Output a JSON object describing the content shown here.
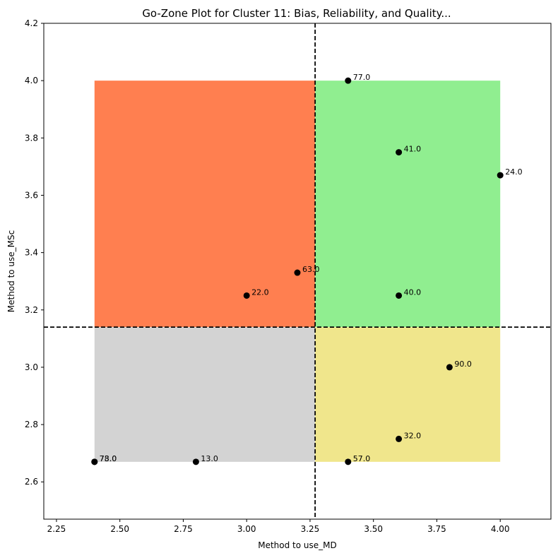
{
  "chart_data": {
    "type": "scatter",
    "title": "Go-Zone Plot for Cluster 11: Bias, Reliability, and Quality...",
    "xlabel": "Method to use_MD",
    "ylabel": "Method to use_MSc",
    "xlim": [
      2.2,
      4.2
    ],
    "ylim": [
      2.47,
      4.2
    ],
    "xticks": [
      "2.25",
      "2.50",
      "2.75",
      "3.00",
      "3.25",
      "3.50",
      "3.75",
      "4.00"
    ],
    "xtick_values": [
      2.25,
      2.5,
      2.75,
      3.0,
      3.25,
      3.5,
      3.75,
      4.0
    ],
    "yticks": [
      "2.6",
      "2.8",
      "3.0",
      "3.2",
      "3.4",
      "3.6",
      "3.8",
      "4.0",
      "4.2"
    ],
    "ytick_values": [
      2.6,
      2.8,
      3.0,
      3.2,
      3.4,
      3.6,
      3.8,
      4.0,
      4.2
    ],
    "mean_x": 3.27,
    "mean_y": 3.14,
    "zone_extent": {
      "x": [
        2.4,
        4.0
      ],
      "y": [
        2.67,
        4.0
      ]
    },
    "zones": [
      {
        "name": "top-left",
        "color": "#ff7f50"
      },
      {
        "name": "top-right",
        "color": "#90ee90"
      },
      {
        "name": "bottom-left",
        "color": "#d3d3d3"
      },
      {
        "name": "bottom-right",
        "color": "#f0e68c"
      }
    ],
    "points": [
      {
        "label": "77.0",
        "x": 3.4,
        "y": 4.0
      },
      {
        "label": "41.0",
        "x": 3.6,
        "y": 3.75
      },
      {
        "label": "24.0",
        "x": 4.0,
        "y": 3.67
      },
      {
        "label": "63.0",
        "x": 3.2,
        "y": 3.33
      },
      {
        "label": "22.0",
        "x": 3.0,
        "y": 3.25
      },
      {
        "label": "40.0",
        "x": 3.6,
        "y": 3.25
      },
      {
        "label": "90.0",
        "x": 3.8,
        "y": 3.0
      },
      {
        "label": "32.0",
        "x": 3.6,
        "y": 2.75
      },
      {
        "label": "57.0",
        "x": 3.4,
        "y": 2.67
      },
      {
        "label": "13.0",
        "x": 2.8,
        "y": 2.67
      },
      {
        "label": "73.0",
        "x": 2.4,
        "y": 2.67
      },
      {
        "label": "78.0",
        "x": 2.4,
        "y": 2.67
      }
    ],
    "point_color": "#000000",
    "grid": false,
    "legend": "none"
  }
}
